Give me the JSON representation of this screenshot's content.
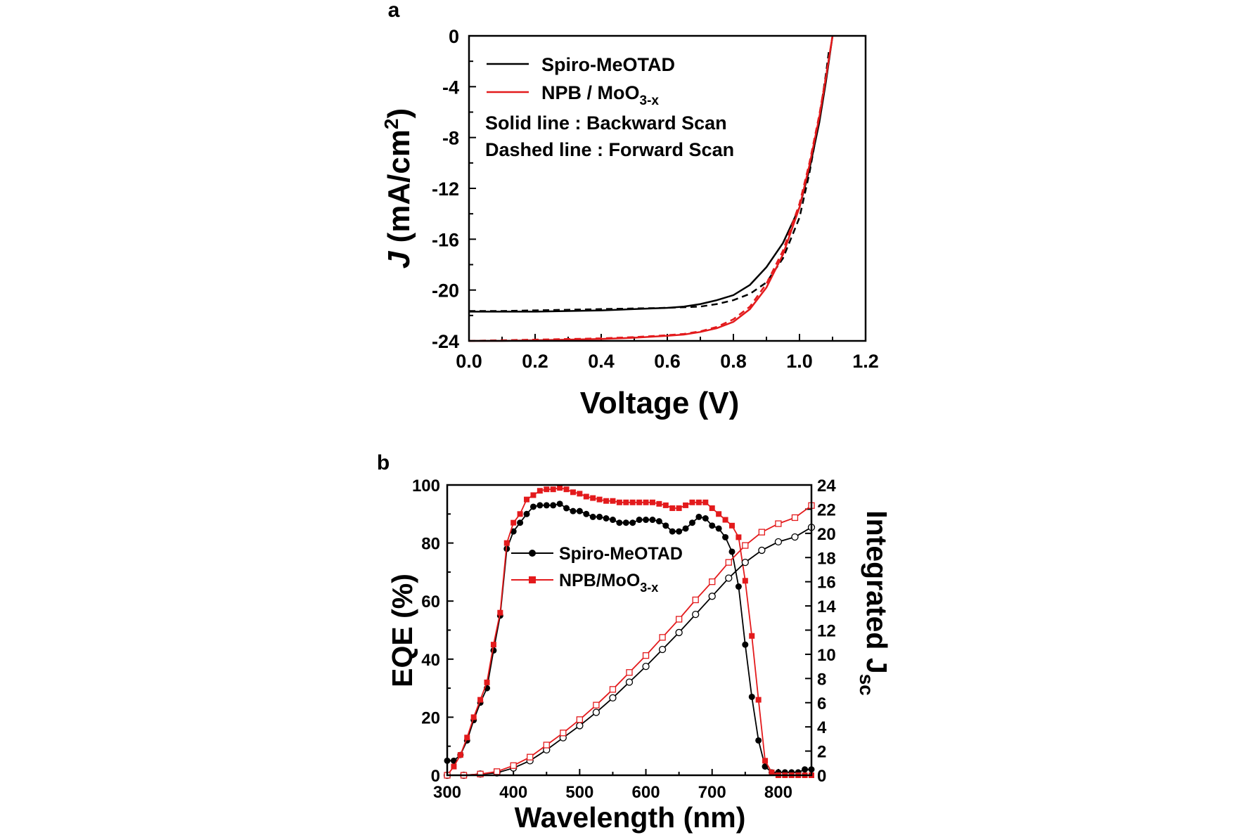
{
  "chart_data": [
    {
      "panel": "a",
      "type": "line",
      "xlabel": "Voltage (V)",
      "ylabel": "J (mA/cm2)",
      "xlim": [
        0.0,
        1.2
      ],
      "ylim": [
        -24,
        0
      ],
      "xticks": [
        "0.0",
        "0.2",
        "0.4",
        "0.6",
        "0.8",
        "1.0",
        "1.2"
      ],
      "yticks": [
        "0",
        "-4",
        "-8",
        "-12",
        "-16",
        "-20",
        "-24"
      ],
      "legend_position": "top-left",
      "notes": [
        "Solid line : Backward Scan",
        "Dashed line : Forward Scan"
      ],
      "series": [
        {
          "name": "Spiro-MeOTAD",
          "scan": "Backward",
          "style": "solid",
          "color": "#000000",
          "x": [
            0.0,
            0.1,
            0.2,
            0.3,
            0.4,
            0.5,
            0.6,
            0.65,
            0.7,
            0.75,
            0.8,
            0.85,
            0.9,
            0.95,
            1.0,
            1.03,
            1.06,
            1.08,
            1.1
          ],
          "y": [
            -21.7,
            -21.7,
            -21.7,
            -21.65,
            -21.6,
            -21.5,
            -21.4,
            -21.3,
            -21.1,
            -20.8,
            -20.4,
            -19.6,
            -18.2,
            -16.3,
            -13.5,
            -10.5,
            -6.8,
            -3.6,
            0.0
          ]
        },
        {
          "name": "Spiro-MeOTAD",
          "scan": "Forward",
          "style": "dashed",
          "color": "#000000",
          "x": [
            0.0,
            0.1,
            0.2,
            0.3,
            0.4,
            0.5,
            0.6,
            0.65,
            0.7,
            0.75,
            0.8,
            0.85,
            0.9,
            0.95,
            1.0,
            1.03,
            1.06,
            1.08,
            1.09
          ],
          "y": [
            -21.65,
            -21.65,
            -21.6,
            -21.55,
            -21.5,
            -21.45,
            -21.4,
            -21.35,
            -21.3,
            -21.1,
            -20.8,
            -20.3,
            -19.4,
            -17.5,
            -14.3,
            -10.8,
            -6.5,
            -3.0,
            -1.0
          ]
        },
        {
          "name": "NPB / MoO3-x",
          "scan": "Backward",
          "style": "solid",
          "color": "#e31a1c",
          "x": [
            0.0,
            0.1,
            0.2,
            0.3,
            0.4,
            0.5,
            0.6,
            0.65,
            0.7,
            0.75,
            0.8,
            0.85,
            0.9,
            0.95,
            1.0,
            1.03,
            1.06,
            1.08,
            1.1
          ],
          "y": [
            -24.0,
            -24.0,
            -23.95,
            -23.9,
            -23.85,
            -23.75,
            -23.6,
            -23.5,
            -23.3,
            -23.0,
            -22.5,
            -21.5,
            -19.8,
            -17.2,
            -13.5,
            -10.2,
            -6.4,
            -3.3,
            0.0
          ]
        },
        {
          "name": "NPB / MoO3-x",
          "scan": "Forward",
          "style": "dashed",
          "color": "#e31a1c",
          "x": [
            0.0,
            0.1,
            0.2,
            0.3,
            0.4,
            0.5,
            0.6,
            0.65,
            0.7,
            0.75,
            0.8,
            0.85,
            0.9,
            0.95,
            1.0,
            1.03,
            1.06,
            1.08,
            1.1
          ],
          "y": [
            -24.0,
            -23.95,
            -23.9,
            -23.85,
            -23.8,
            -23.7,
            -23.55,
            -23.45,
            -23.25,
            -22.9,
            -22.3,
            -21.3,
            -19.5,
            -16.9,
            -13.2,
            -10.0,
            -6.2,
            -3.2,
            0.0
          ]
        }
      ]
    },
    {
      "panel": "b",
      "type": "line",
      "xlabel": "Wavelength (nm)",
      "ylabel": "EQE (%)",
      "y2label": "Integrated Jsc",
      "xlim": [
        300,
        850
      ],
      "ylim": [
        0,
        100
      ],
      "y2lim": [
        0,
        24
      ],
      "xticks": [
        "300",
        "400",
        "500",
        "600",
        "700",
        "800"
      ],
      "yticks": [
        "0",
        "20",
        "40",
        "60",
        "80",
        "100"
      ],
      "y2ticks": [
        "0",
        "2",
        "4",
        "6",
        "8",
        "10",
        "12",
        "14",
        "16",
        "18",
        "20",
        "22",
        "24"
      ],
      "legend_position": "center-left",
      "series": [
        {
          "name": "Spiro-MeOTAD",
          "axis": "left",
          "marker": "filled-circle",
          "color": "#000000",
          "x": [
            300,
            310,
            320,
            330,
            340,
            350,
            360,
            370,
            380,
            390,
            400,
            410,
            420,
            430,
            440,
            450,
            460,
            470,
            480,
            490,
            500,
            510,
            520,
            530,
            540,
            550,
            560,
            570,
            580,
            590,
            600,
            610,
            620,
            630,
            640,
            650,
            660,
            670,
            680,
            690,
            700,
            710,
            720,
            730,
            740,
            750,
            760,
            770,
            780,
            790,
            800,
            810,
            820,
            830,
            840,
            850
          ],
          "y": [
            5,
            5,
            7,
            12,
            19,
            25,
            30,
            43,
            55,
            78,
            84,
            87,
            90,
            92.5,
            93,
            93,
            93,
            93.5,
            92,
            91,
            91,
            90,
            89,
            89,
            88.5,
            88,
            87,
            87,
            87,
            88,
            88,
            88,
            87.5,
            86,
            84,
            84,
            85,
            87,
            89,
            88.5,
            86,
            85,
            82,
            77,
            65,
            45,
            27,
            12,
            3,
            1,
            1,
            1,
            1,
            1,
            2,
            2
          ]
        },
        {
          "name": "NPB/MoO3-x",
          "axis": "left",
          "marker": "filled-square",
          "color": "#e31a1c",
          "x": [
            300,
            310,
            320,
            330,
            340,
            350,
            360,
            370,
            380,
            390,
            400,
            410,
            420,
            430,
            440,
            450,
            460,
            470,
            480,
            490,
            500,
            510,
            520,
            530,
            540,
            550,
            560,
            570,
            580,
            590,
            600,
            610,
            620,
            630,
            640,
            650,
            660,
            670,
            680,
            690,
            700,
            710,
            720,
            730,
            740,
            750,
            760,
            770,
            780,
            790,
            800,
            810,
            820,
            830,
            840,
            850
          ],
          "y": [
            0,
            3,
            7,
            13,
            20,
            26,
            32,
            45,
            56,
            80,
            87,
            90,
            95,
            96.5,
            98,
            98.5,
            98.5,
            99,
            98.5,
            97.5,
            97,
            96,
            95.5,
            95,
            94.5,
            94.5,
            94,
            94,
            94,
            94,
            94,
            94,
            93.5,
            93,
            92,
            92,
            93,
            94,
            94,
            94,
            92,
            90,
            88,
            86,
            82,
            67,
            48,
            26,
            5,
            1,
            0,
            0,
            0,
            0,
            0,
            0
          ]
        },
        {
          "name": "Spiro-MeOTAD Integrated",
          "axis": "right",
          "marker": "open-circle",
          "color": "#000000",
          "x": [
            300,
            325,
            350,
            375,
            400,
            425,
            450,
            475,
            500,
            525,
            550,
            575,
            600,
            625,
            650,
            675,
            700,
            725,
            750,
            775,
            800,
            825,
            850
          ],
          "y": [
            0,
            0,
            0.1,
            0.2,
            0.6,
            1.2,
            2.1,
            3.1,
            4.1,
            5.2,
            6.4,
            7.7,
            9.0,
            10.4,
            11.8,
            13.3,
            14.8,
            16.3,
            17.6,
            18.6,
            19.3,
            19.7,
            20.5
          ]
        },
        {
          "name": "NPB/MoO3-x Integrated",
          "axis": "right",
          "marker": "open-square",
          "color": "#e31a1c",
          "x": [
            300,
            325,
            350,
            375,
            400,
            425,
            450,
            475,
            500,
            525,
            550,
            575,
            600,
            625,
            650,
            675,
            700,
            725,
            750,
            775,
            800,
            825,
            850
          ],
          "y": [
            0,
            0,
            0.1,
            0.3,
            0.8,
            1.5,
            2.5,
            3.5,
            4.6,
            5.8,
            7.1,
            8.5,
            9.9,
            11.4,
            12.9,
            14.5,
            16.0,
            17.6,
            19.0,
            20.1,
            20.8,
            21.3,
            22.3
          ]
        }
      ]
    }
  ],
  "panels": {
    "a": {
      "letter": "a",
      "xlabel": "Voltage (V)",
      "ylabel_j": "J",
      "ylabel_units": " (mA/cm",
      "ylabel_sup": "2",
      "ylabel_close": ")",
      "legend_spiro": "Spiro-MeOTAD",
      "legend_npb_main": "NPB / MoO",
      "legend_npb_sub": "3-x",
      "note_backward": "Solid line : Backward Scan",
      "note_forward": "Dashed line : Forward Scan"
    },
    "b": {
      "letter": "b",
      "xlabel": "Wavelength (nm)",
      "ylabel": "EQE (%)",
      "y2label_main": "Integrated J",
      "y2label_sub": "sc",
      "legend_spiro": "Spiro-MeOTAD",
      "legend_npb_main": "NPB/MoO",
      "legend_npb_sub": "3-x"
    }
  }
}
